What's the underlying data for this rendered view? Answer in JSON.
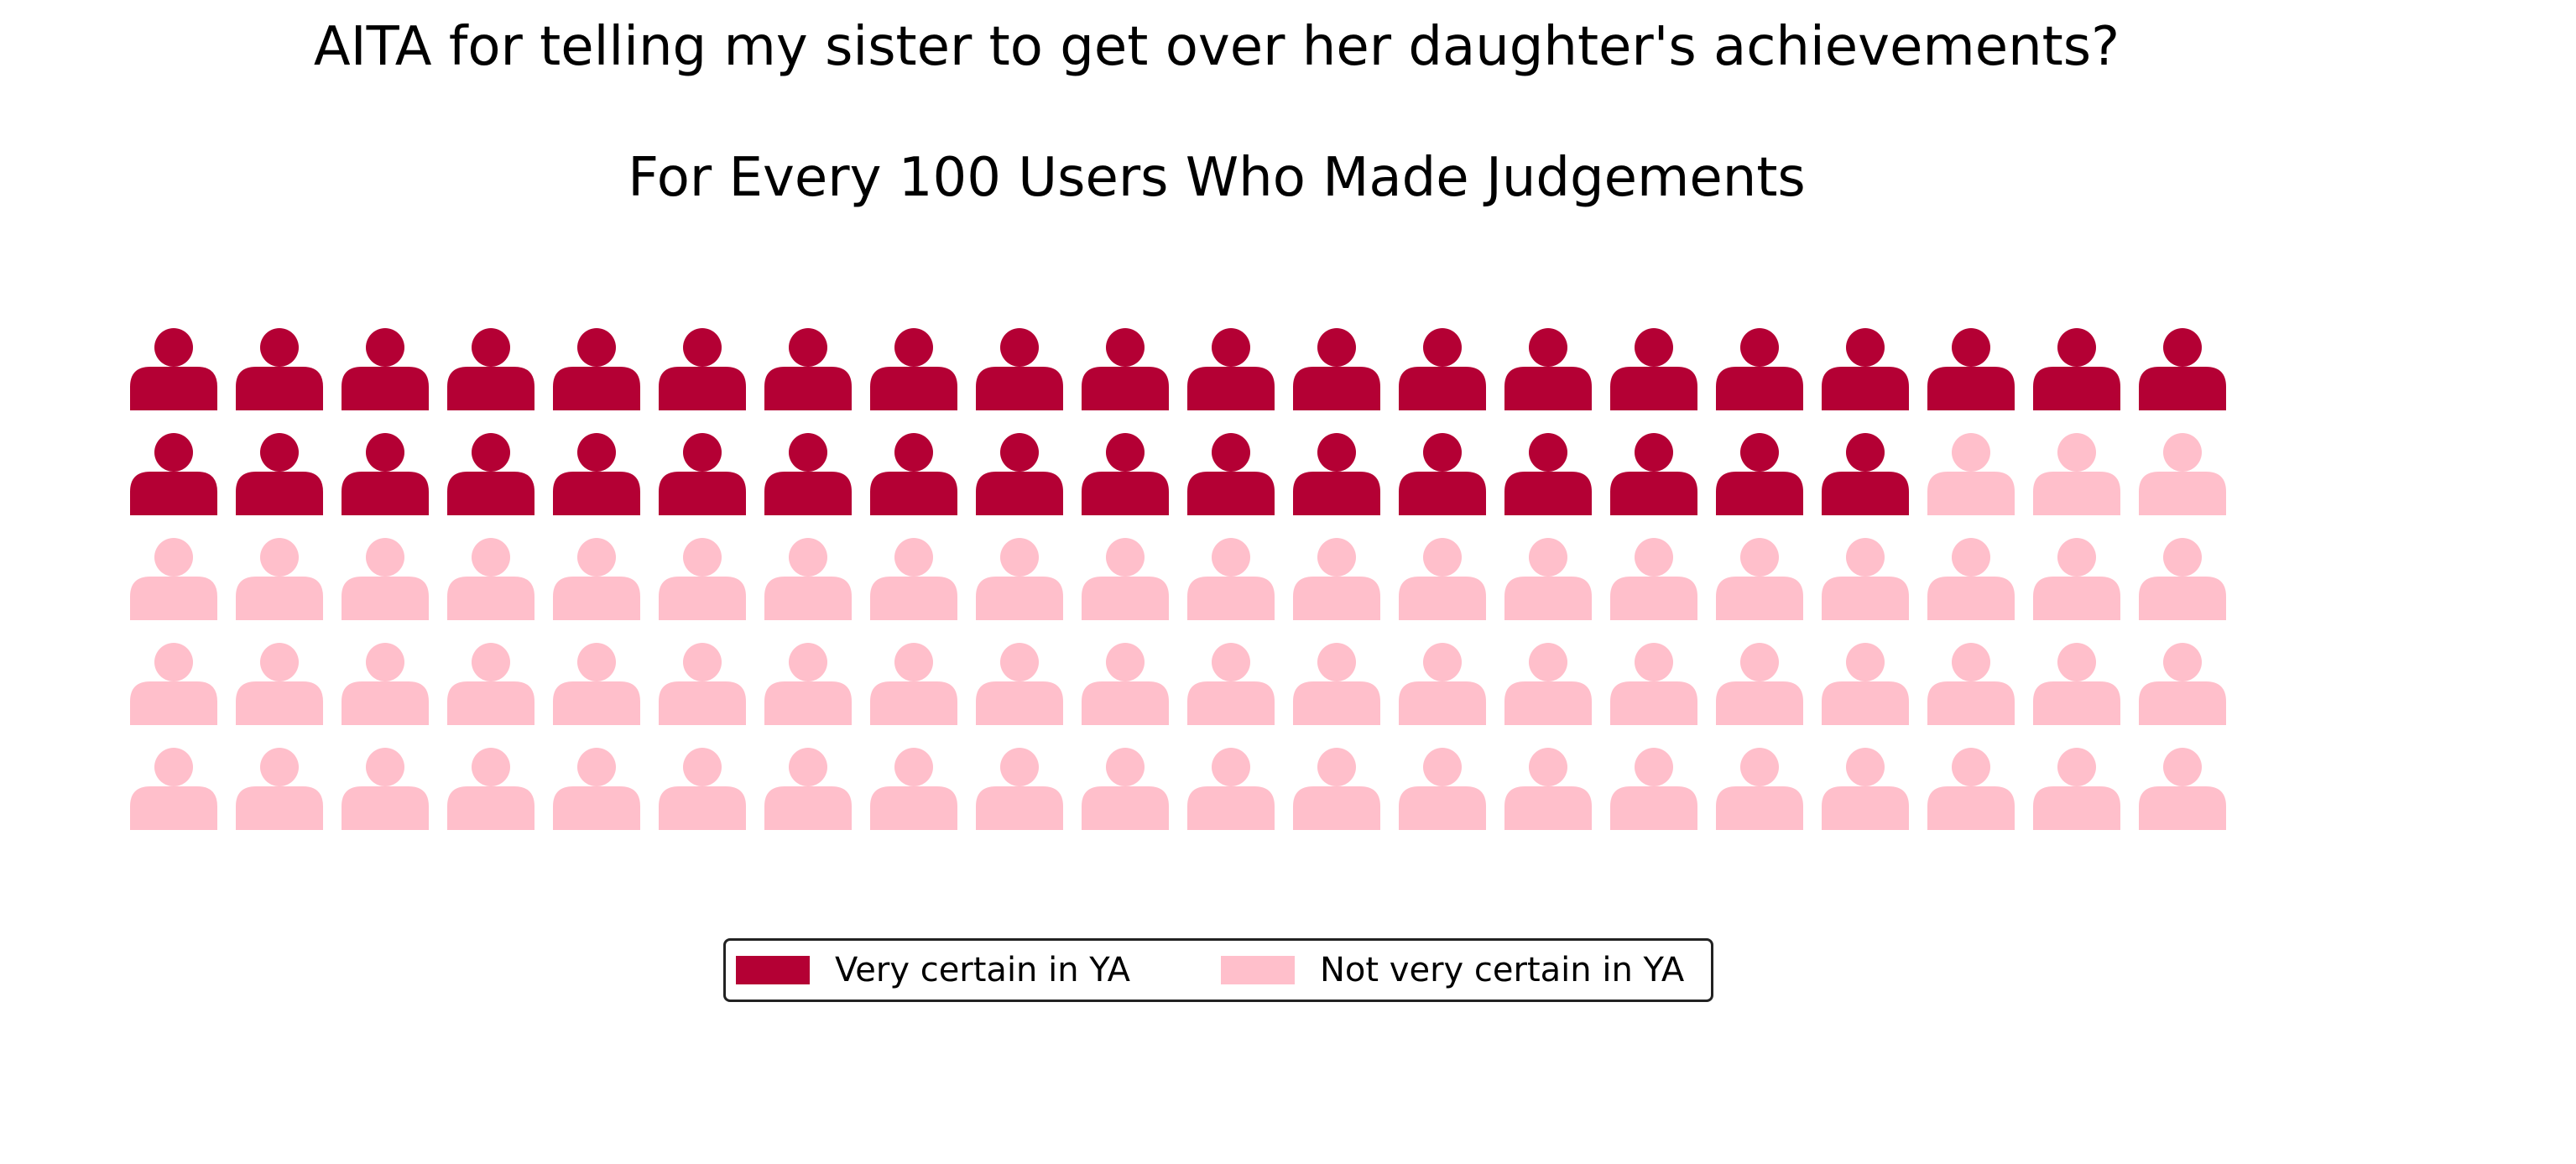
{
  "chart_data": {
    "type": "waffle",
    "title": "AITA for telling my sister to get over her daughter's achievements?",
    "subtitle": "For Every 100 Users Who Made Judgements",
    "total": 100,
    "rows": 5,
    "columns": 20,
    "series": [
      {
        "name": "Very certain in YA",
        "value": 37,
        "color": "#b40034"
      },
      {
        "name": "Not very certain in YA",
        "value": 63,
        "color": "#ffbfcb"
      }
    ],
    "icon": "person-icon",
    "legend_position": "bottom-center"
  }
}
